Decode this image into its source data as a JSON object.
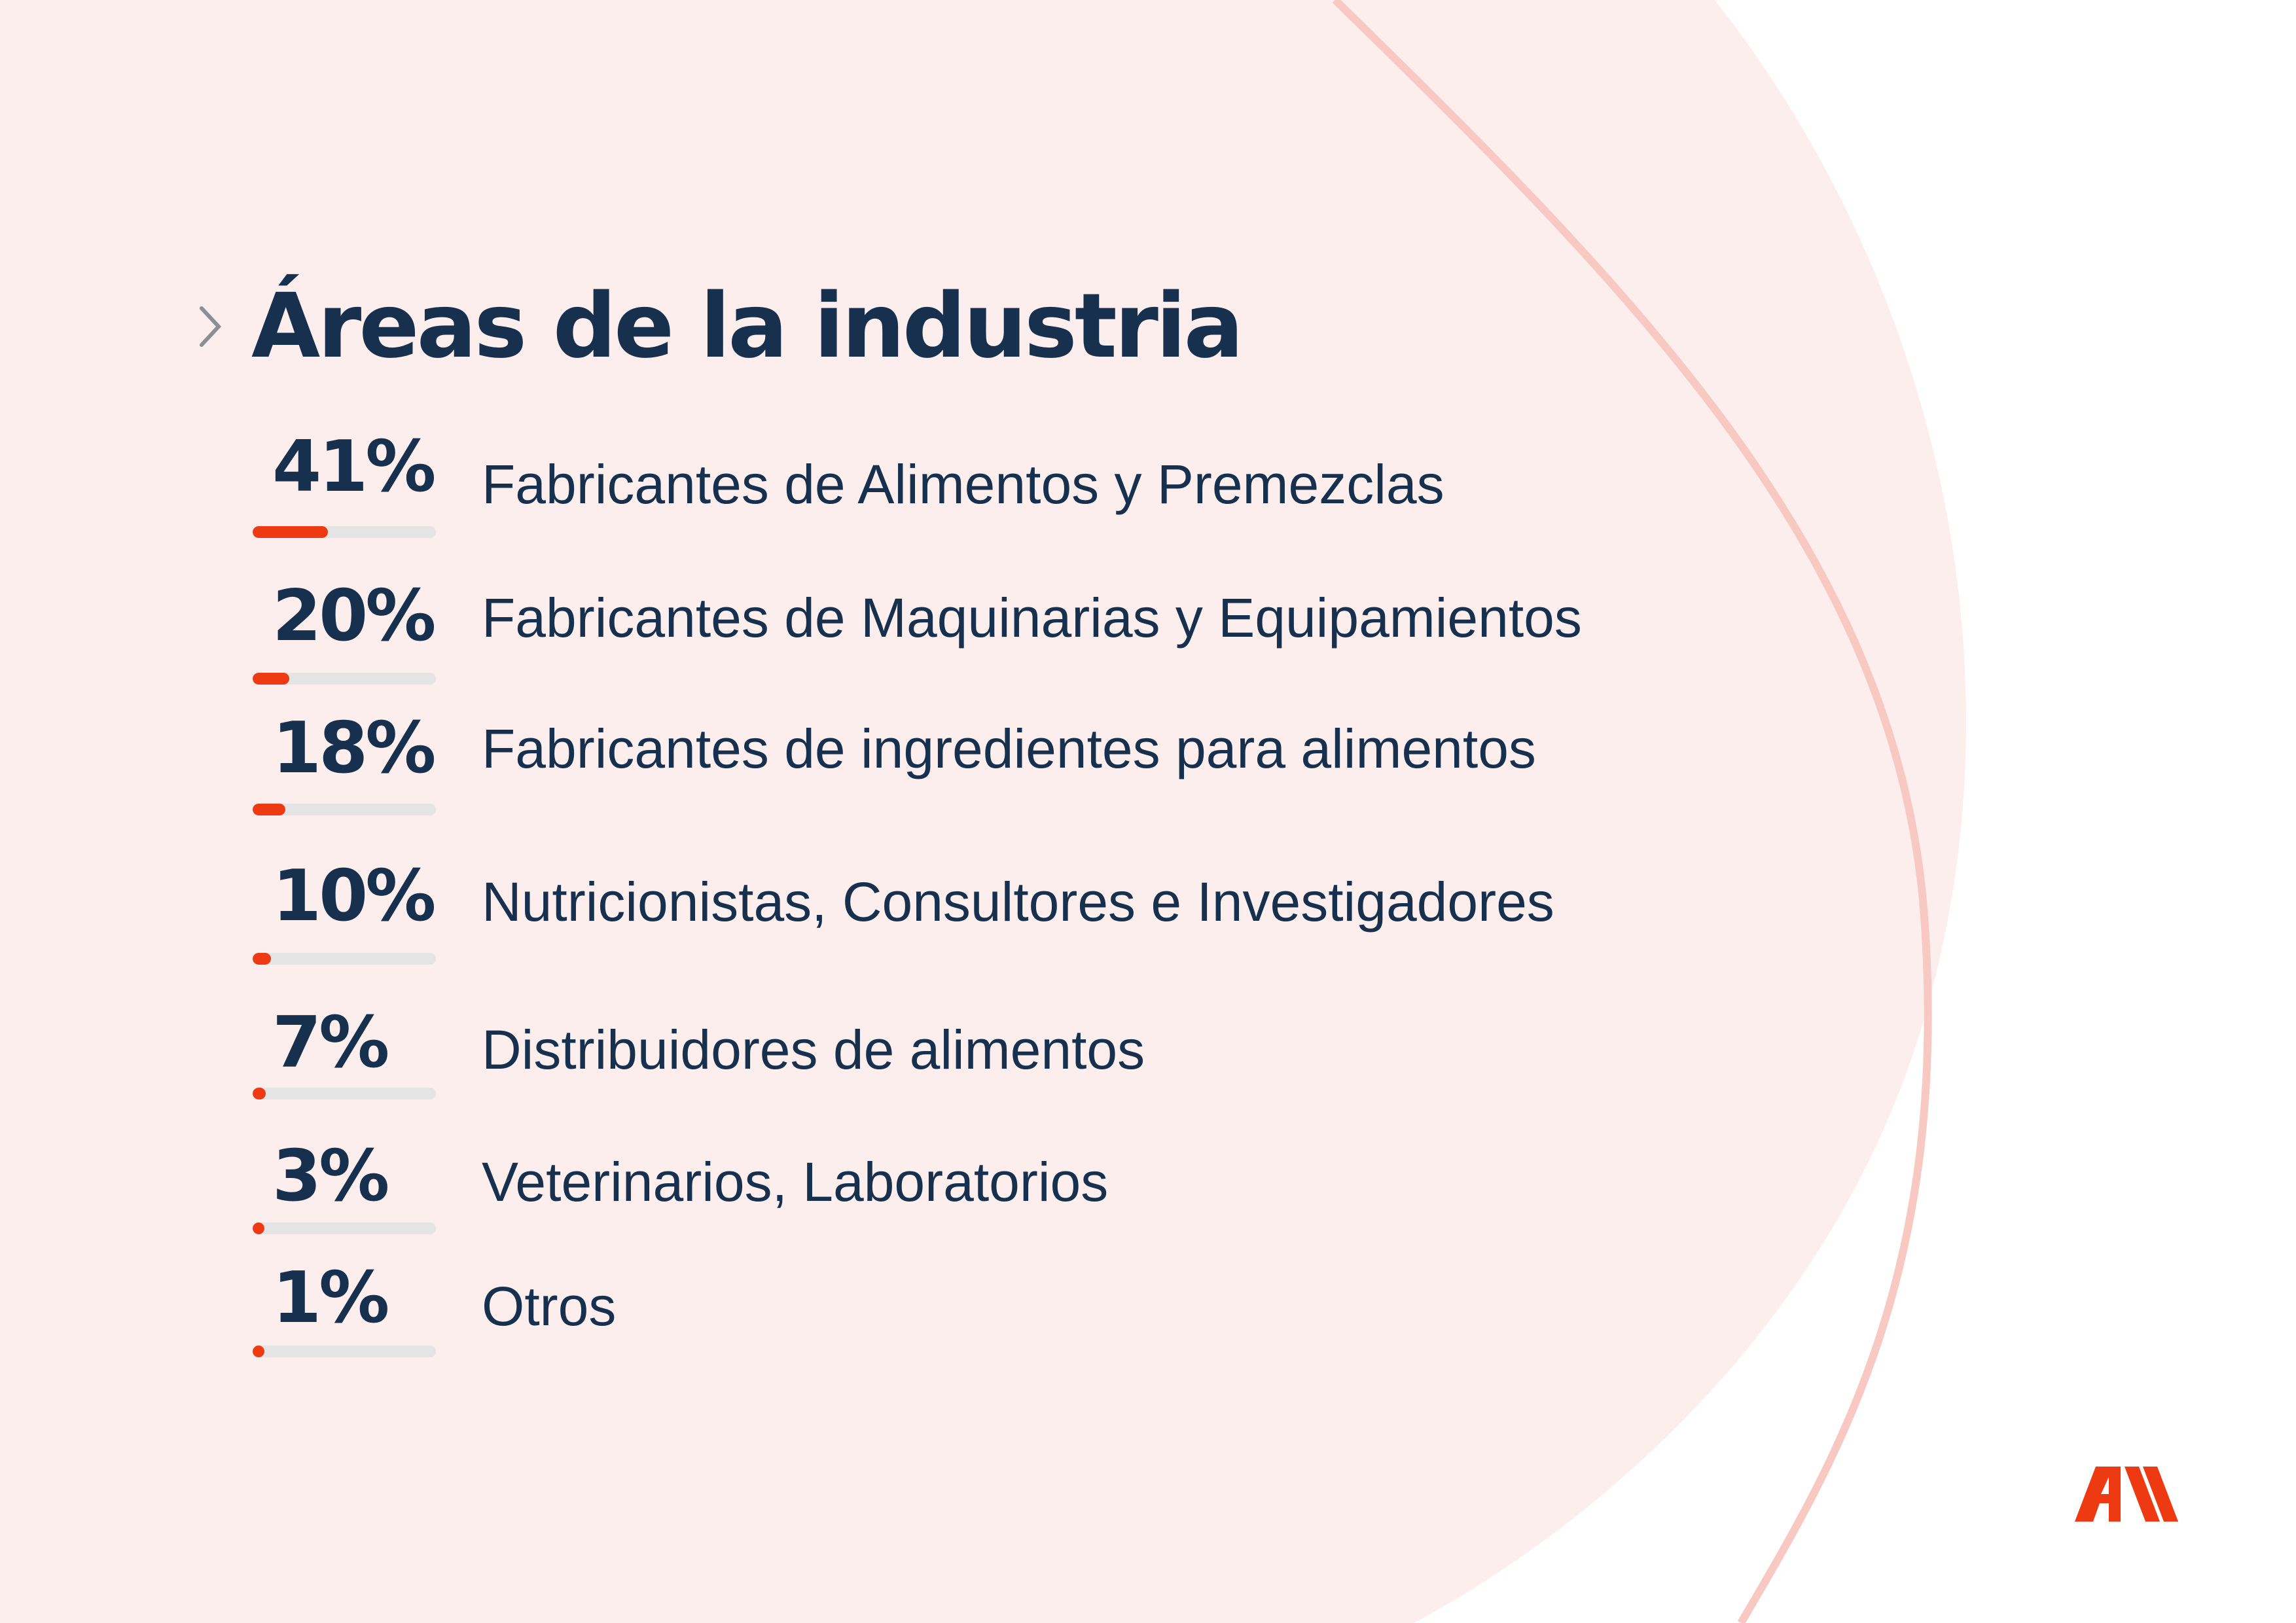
{
  "title": "Áreas de la industria",
  "colors": {
    "heading": "#17304e",
    "accent": "#ee3a12",
    "track": "#e4e4e4",
    "blob": "#fdeeee",
    "curve": "#f8c9c2"
  },
  "icons": {
    "bullet": "chevron-right-icon",
    "logo": "brand-logo-icon"
  },
  "items": [
    {
      "percent_label": "41%",
      "value": 41,
      "label": "Fabricantes de Alimentos y Premezclas"
    },
    {
      "percent_label": "20%",
      "value": 20,
      "label": "Fabricantes de Maquinarias y Equipamientos"
    },
    {
      "percent_label": "18%",
      "value": 18,
      "label": "Fabricantes de ingredientes para alimentos"
    },
    {
      "percent_label": "10%",
      "value": 10,
      "label": "Nutricionistas, Consultores e Investigadores"
    },
    {
      "percent_label": "7%",
      "value": 7,
      "label": "Distribuidores de alimentos"
    },
    {
      "percent_label": "3%",
      "value": 3,
      "label": "Veterinarios, Laboratorios"
    },
    {
      "percent_label": "1%",
      "value": 1,
      "label": "Otros"
    }
  ]
}
